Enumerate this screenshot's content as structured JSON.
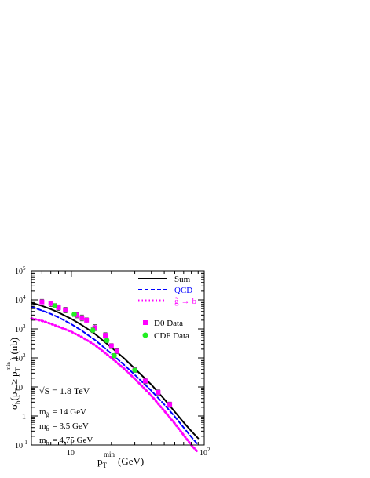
{
  "chart_data": {
    "type": "line",
    "xscale": "log",
    "yscale": "log",
    "xlim": [
      5,
      100
    ],
    "ylim": [
      0.1,
      100000
    ],
    "xlabel": {
      "main": "p",
      "sub": "T",
      "sup": "min",
      "unit": "(GeV)"
    },
    "ylabel": {
      "sigma": "σ",
      "sub_b": "b",
      "p1": "p",
      "sub_T1": "T",
      "ge": "≥",
      "p2": "p",
      "sub_T2": "T",
      "sup_min": "min",
      "rest": ")  (nb)",
      "open": "("
    },
    "x_ticks": [
      {
        "value": 10,
        "base": "10",
        "exp": ""
      },
      {
        "value": 100,
        "base": "10",
        "exp": "2"
      }
    ],
    "y_ticks": [
      {
        "value": 0.1,
        "base": "10",
        "exp": "-1"
      },
      {
        "value": 1,
        "base": "1",
        "exp": ""
      },
      {
        "value": 10,
        "base": "10",
        "exp": ""
      },
      {
        "value": 100,
        "base": "10",
        "exp": "2"
      },
      {
        "value": 1000,
        "base": "10",
        "exp": "3"
      },
      {
        "value": 10000,
        "base": "10",
        "exp": "4"
      },
      {
        "value": 100000,
        "base": "10",
        "exp": "5"
      }
    ],
    "series": [
      {
        "name": "Sum",
        "style": "solid",
        "color": "#000000",
        "x": [
          5,
          6,
          7,
          8,
          10,
          12,
          15,
          20,
          25,
          30,
          40,
          50,
          60,
          70,
          80,
          90
        ],
        "y": [
          8000,
          6200,
          4800,
          3700,
          2200,
          1350,
          680,
          230,
          95,
          43,
          12,
          3.8,
          1.4,
          0.6,
          0.3,
          0.17
        ]
      },
      {
        "name": "QCD",
        "style": "dashed",
        "color": "#0000ff",
        "x": [
          5,
          6,
          7,
          8,
          10,
          12,
          15,
          20,
          25,
          30,
          40,
          50,
          60,
          70,
          80,
          90
        ],
        "y": [
          5800,
          4300,
          3300,
          2500,
          1450,
          860,
          420,
          140,
          57,
          26,
          7.4,
          2.5,
          0.95,
          0.4,
          0.19,
          0.1
        ]
      },
      {
        "name": "g̃ → b",
        "label_left": "g̃",
        "label_arrow": "→",
        "label_right": "b",
        "style": "dotted",
        "color": "#ff00ff",
        "x": [
          5,
          6,
          7,
          8,
          10,
          12,
          15,
          20,
          25,
          30,
          40,
          50,
          60,
          70,
          80,
          90
        ],
        "y": [
          2300,
          1900,
          1500,
          1200,
          800,
          520,
          280,
          100,
          42,
          19,
          5,
          1.5,
          0.55,
          0.22,
          0.1,
          0.055
        ]
      }
    ],
    "data_series": [
      {
        "name": "D0 Data",
        "marker": "square",
        "color": "#ff00ff",
        "points": [
          {
            "x": 6.0,
            "y": 8500,
            "lo": 6600,
            "hi": 10400
          },
          {
            "x": 7.0,
            "y": 7500,
            "lo": 5900,
            "hi": 9100
          },
          {
            "x": 8.0,
            "y": 5400,
            "lo": 4300,
            "hi": 6700
          },
          {
            "x": 9.0,
            "y": 4500,
            "lo": 3600,
            "hi": 5500
          },
          {
            "x": 11.0,
            "y": 3000,
            "lo": 2400,
            "hi": 3700
          },
          {
            "x": 12.0,
            "y": 2400,
            "lo": 1900,
            "hi": 3000
          },
          {
            "x": 13.0,
            "y": 2000,
            "lo": 1600,
            "hi": 2400
          },
          {
            "x": 15.0,
            "y": 1100,
            "lo": 880,
            "hi": 1400
          },
          {
            "x": 18.0,
            "y": 600,
            "lo": 480,
            "hi": 740
          },
          {
            "x": 20.0,
            "y": 260,
            "lo": 210,
            "hi": 310
          },
          {
            "x": 22.0,
            "y": 170,
            "lo": 140,
            "hi": 210
          },
          {
            "x": 30.0,
            "y": 40,
            "lo": 33,
            "hi": 48
          },
          {
            "x": 36.0,
            "y": 16,
            "lo": 13,
            "hi": 19
          },
          {
            "x": 45.0,
            "y": 6.5,
            "lo": 5.3,
            "hi": 7.9
          },
          {
            "x": 55.0,
            "y": 2.5,
            "lo": 2.0,
            "hi": 3.0
          }
        ]
      },
      {
        "name": "CDF Data",
        "marker": "circle",
        "color": "#22ee22",
        "points": [
          {
            "x": 7.5,
            "y": 6200,
            "lo": 5200,
            "hi": 7400
          },
          {
            "x": 10.5,
            "y": 3200,
            "lo": 2700,
            "hi": 3800
          },
          {
            "x": 14.5,
            "y": 900,
            "lo": 750,
            "hi": 1080
          },
          {
            "x": 18.5,
            "y": 400,
            "lo": 340,
            "hi": 470
          },
          {
            "x": 21.0,
            "y": 120,
            "lo": 100,
            "hi": 140
          },
          {
            "x": 30.0,
            "y": 38,
            "lo": 32,
            "hi": 45
          }
        ]
      }
    ],
    "annotations": {
      "sqrt_s": {
        "root": "√",
        "main": "S = 1.8 TeV"
      },
      "masses": [
        {
          "m": "m",
          "sub": "g̃",
          "value": "= 14 GeV"
        },
        {
          "m": "m",
          "sub": "b̃",
          "value": "= 3.5 GeV"
        },
        {
          "m": "m",
          "sub": "b",
          "value": "= 4.75 GeV"
        }
      ]
    },
    "legend": "top-right",
    "grid": false
  }
}
